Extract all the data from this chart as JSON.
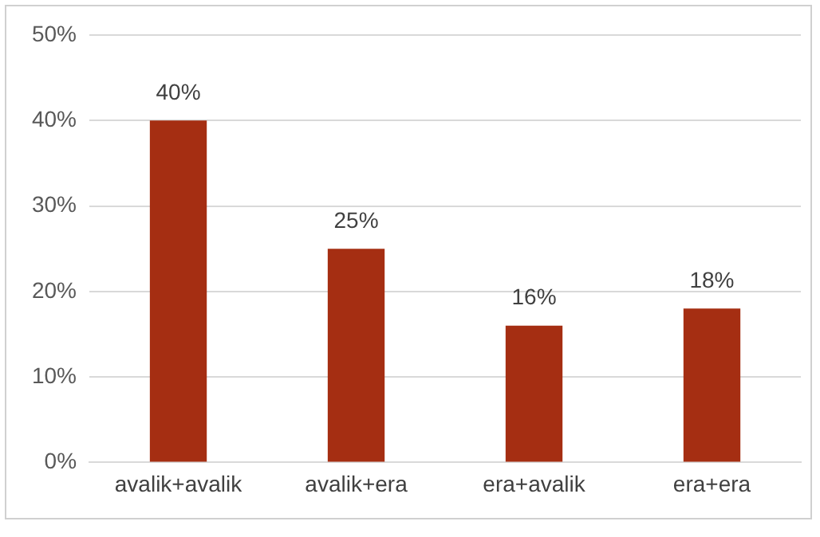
{
  "chart_data": {
    "type": "bar",
    "categories": [
      "avalik+avalik",
      "avalik+era",
      "era+avalik",
      "era+era"
    ],
    "values": [
      40,
      25,
      16,
      18
    ],
    "color": "#a52e12",
    "value_labels": [
      "40%",
      "25%",
      "16%",
      "18%"
    ],
    "ylim": [
      0,
      50
    ],
    "yticks": [
      {
        "value": 0,
        "label": "0%"
      },
      {
        "value": 10,
        "label": "10%"
      },
      {
        "value": 20,
        "label": "20%"
      },
      {
        "value": 30,
        "label": "30%"
      },
      {
        "value": 40,
        "label": "40%"
      },
      {
        "value": 50,
        "label": "50%"
      }
    ],
    "grid": "y",
    "legend": false
  }
}
